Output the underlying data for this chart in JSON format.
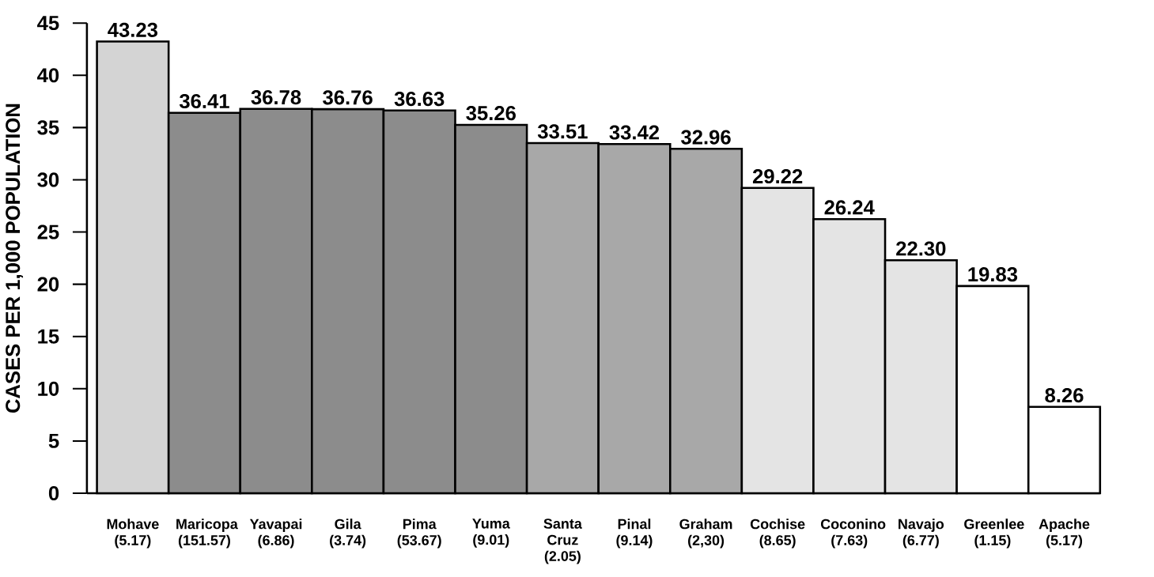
{
  "chart_data": {
    "type": "bar",
    "ylabel": "CASES PER 1,000 POPULATION",
    "categories": [
      "Mohave (5.17)",
      "Maricopa (151.57)",
      "Yavapai (6.86)",
      "Gila (3.74)",
      "Pima (53.67)",
      "Yuma (9.01)",
      "Santa Cruz (2.05)",
      "Pinal (9.14)",
      "Graham (2,30)",
      "Cochise (8.65)",
      "Coconino (7.63)",
      "Navajo (6.77)",
      "Greenlee (1.15)",
      "Apache (5.17)"
    ],
    "values": [
      43.23,
      36.41,
      36.78,
      36.76,
      36.63,
      35.26,
      33.51,
      33.42,
      32.96,
      29.22,
      26.24,
      22.3,
      19.83,
      8.26
    ],
    "value_labels": [
      "43.23",
      "36.41",
      "36.78",
      "36.76",
      "36.63",
      "35.26",
      "33.51",
      "33.42",
      "32.96",
      "29.22",
      "26.24",
      "22.30",
      "19.83",
      "8.26"
    ],
    "colors": [
      "#d4d4d4",
      "#8c8c8c",
      "#8c8c8c",
      "#8c8c8c",
      "#8c8c8c",
      "#8c8c8c",
      "#a8a8a8",
      "#a8a8a8",
      "#a8a8a8",
      "#e4e4e4",
      "#e4e4e4",
      "#e4e4e4",
      "#ffffff",
      "#ffffff"
    ],
    "ylim": [
      0,
      45
    ],
    "yticks": [
      0,
      5,
      10,
      15,
      20,
      25,
      30,
      35,
      40,
      45
    ],
    "grid": false
  }
}
